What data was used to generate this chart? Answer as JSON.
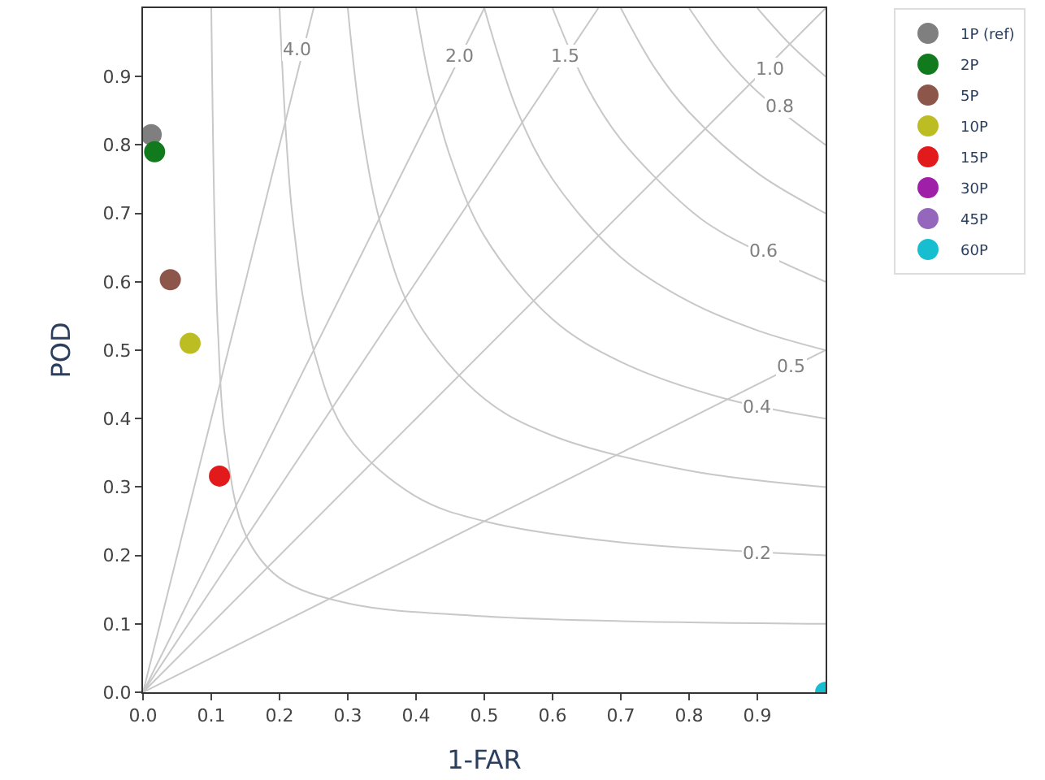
{
  "chart_data": {
    "type": "scatter",
    "xlabel": "1-FAR",
    "ylabel": "POD",
    "xlim": [
      0,
      1
    ],
    "ylim": [
      0,
      1
    ],
    "xticks": [
      {
        "value": 0,
        "label": "0.0"
      },
      0.1,
      0.2,
      0.3,
      0.4,
      0.5,
      0.6,
      0.7,
      0.8,
      0.9
    ],
    "yticks": [
      {
        "value": 0,
        "label": "0.0"
      },
      0.1,
      0.2,
      0.3,
      0.4,
      0.5,
      0.6,
      0.7,
      0.8,
      0.9
    ],
    "legend": "top right",
    "marker": "circle",
    "series": [
      {
        "type": "line",
        "marker": "none",
        "color": "#c8c8c8",
        "x": [
          0.1,
          0.105,
          0.11,
          0.12,
          0.15,
          0.2,
          0.3,
          0.5,
          0.7,
          1.0
        ],
        "values": [
          1.0,
          0.678,
          0.524,
          0.375,
          0.231,
          0.167,
          0.13,
          0.111,
          0.104,
          0.1
        ]
      },
      {
        "type": "line",
        "marker": "none",
        "color": "#c8c8c8",
        "x": [
          0.2,
          0.21,
          0.22,
          0.25,
          0.3,
          0.4,
          0.5,
          0.7,
          1.0
        ],
        "values": [
          1.0,
          0.808,
          0.687,
          0.5,
          0.375,
          0.286,
          0.25,
          0.219,
          0.2
        ]
      },
      {
        "type": "line",
        "marker": "none",
        "color": "#c8c8c8",
        "x": [
          0.3,
          0.32,
          0.35,
          0.4,
          0.5,
          0.6,
          0.8,
          1.0
        ],
        "values": [
          1.0,
          0.828,
          0.677,
          0.545,
          0.429,
          0.375,
          0.324,
          0.3
        ]
      },
      {
        "type": "line",
        "marker": "none",
        "color": "#c8c8c8",
        "x": [
          0.4,
          0.42,
          0.45,
          0.5,
          0.6,
          0.7,
          0.85,
          1.0
        ],
        "values": [
          1.0,
          0.894,
          0.783,
          0.667,
          0.545,
          0.483,
          0.43,
          0.4
        ]
      },
      {
        "type": "line",
        "marker": "none",
        "color": "#c8c8c8",
        "x": [
          0.5,
          0.55,
          0.6,
          0.7,
          0.8,
          0.9,
          1.0
        ],
        "values": [
          1.0,
          0.846,
          0.75,
          0.636,
          0.571,
          0.529,
          0.5
        ]
      },
      {
        "type": "line",
        "marker": "none",
        "color": "#c8c8c8",
        "x": [
          0.6,
          0.65,
          0.7,
          0.8,
          0.85,
          1.0
        ],
        "values": [
          1.0,
          0.886,
          0.808,
          0.706,
          0.671,
          0.6
        ]
      },
      {
        "type": "line",
        "marker": "none",
        "color": "#c8c8c8",
        "x": [
          0.7,
          0.75,
          0.8,
          0.9,
          1.0
        ],
        "values": [
          1.0,
          0.912,
          0.848,
          0.759,
          0.7
        ]
      },
      {
        "type": "line",
        "marker": "none",
        "color": "#c8c8c8",
        "x": [
          0.8,
          0.85,
          0.9,
          1.0
        ],
        "values": [
          1.0,
          0.931,
          0.878,
          0.8
        ]
      },
      {
        "type": "line",
        "marker": "none",
        "color": "#c8c8c8",
        "x": [
          0.9,
          0.95,
          1.0
        ],
        "values": [
          1.0,
          0.945,
          0.9
        ]
      },
      {
        "type": "line",
        "marker": "none",
        "color": "#c8c8c8",
        "x": [
          0,
          0.25
        ],
        "values": [
          0,
          1.0
        ]
      },
      {
        "type": "line",
        "marker": "none",
        "color": "#c8c8c8",
        "x": [
          0,
          0.5
        ],
        "values": [
          0,
          1.0
        ]
      },
      {
        "type": "line",
        "marker": "none",
        "color": "#c8c8c8",
        "x": [
          0,
          0.667
        ],
        "values": [
          0,
          1.0
        ]
      },
      {
        "type": "line",
        "marker": "none",
        "color": "#c8c8c8",
        "x": [
          0,
          1.0
        ],
        "values": [
          0,
          1.0
        ]
      },
      {
        "type": "line",
        "marker": "none",
        "color": "#c8c8c8",
        "x": [
          0,
          1.0
        ],
        "values": [
          0,
          0.5
        ]
      },
      {
        "name": "1P (ref)",
        "color": "#7f7f7f",
        "x": [
          0.012
        ],
        "values": [
          0.815
        ]
      },
      {
        "name": "2P",
        "color": "#117a1d",
        "x": [
          0.017
        ],
        "values": [
          0.79
        ]
      },
      {
        "name": "5P",
        "color": "#8c564b",
        "x": [
          0.04
        ],
        "values": [
          0.603
        ]
      },
      {
        "name": "10P",
        "color": "#bcbd22",
        "x": [
          0.069
        ],
        "values": [
          0.51
        ]
      },
      {
        "name": "15P",
        "color": "#e31a1c",
        "x": [
          0.112
        ],
        "values": [
          0.316
        ]
      },
      {
        "name": "30P",
        "color": "#a01fa8",
        "x": [
          null
        ],
        "values": [
          null
        ]
      },
      {
        "name": "45P",
        "color": "#9467bd",
        "x": [
          null
        ],
        "values": [
          null
        ]
      },
      {
        "name": "60P",
        "color": "#17becf",
        "x": [
          1.0
        ],
        "values": [
          0.0
        ]
      }
    ],
    "annotations": [
      {
        "text": "4.0",
        "x": 0.226,
        "y": 0.94
      },
      {
        "text": "2.0",
        "x": 0.464,
        "y": 0.93
      },
      {
        "text": "1.5",
        "x": 0.619,
        "y": 0.93
      },
      {
        "text": "1.0",
        "x": 0.92,
        "y": 0.91
      },
      {
        "text": "0.8",
        "x": 0.933,
        "y": 0.857
      },
      {
        "text": "0.6",
        "x": 0.91,
        "y": 0.644
      },
      {
        "text": "0.5",
        "x": 0.95,
        "y": 0.477
      },
      {
        "text": "0.4",
        "x": 0.9,
        "y": 0.418
      },
      {
        "text": "0.2",
        "x": 0.9,
        "y": 0.204
      }
    ]
  }
}
